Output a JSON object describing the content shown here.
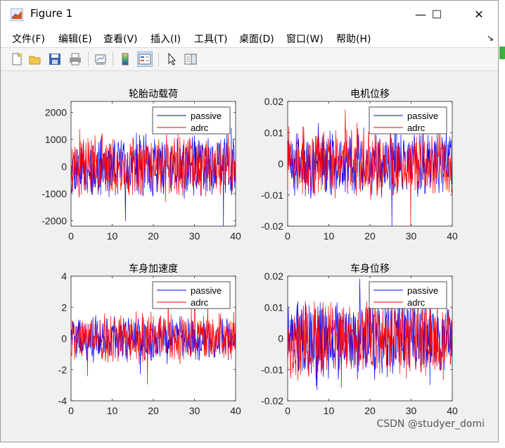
{
  "window": {
    "title": "Figure 1",
    "controls": {
      "minimize": "—",
      "maximize": "☐",
      "close": "✕"
    }
  },
  "menubar": {
    "items": [
      "文件(F)",
      "编辑(E)",
      "查看(V)",
      "插入(I)",
      "工具(T)",
      "桌面(D)",
      "窗口(W)",
      "帮助(H)"
    ],
    "overflow_icon": "corner-arrow-icon"
  },
  "toolbar": {
    "buttons": [
      {
        "name": "new-figure-icon"
      },
      {
        "name": "open-file-icon"
      },
      {
        "name": "save-icon"
      },
      {
        "name": "print-icon"
      },
      {
        "name": "link-plot-icon"
      },
      {
        "name": "colorbar-icon"
      },
      {
        "name": "legend-icon"
      },
      {
        "name": "edit-plot-pointer-icon"
      },
      {
        "name": "property-inspector-icon"
      }
    ]
  },
  "watermark": "CSDN @studyer_domi",
  "colors": {
    "passive": "#0000ff",
    "adrc": "#ff0000",
    "axes_bg": "#ffffff",
    "figure_bg": "#f0f0f0"
  },
  "chart_data": [
    {
      "type": "line",
      "title": "轮胎动载荷",
      "xlim": [
        0,
        40
      ],
      "ylim": [
        -2200,
        2400
      ],
      "xticks": [
        "0",
        "10",
        "20",
        "30",
        "40"
      ],
      "yticks": [
        "-2000",
        "-1000",
        "0",
        "1000",
        "2000"
      ],
      "legend": {
        "position": "top-right",
        "entries": [
          "passive",
          "adrc"
        ]
      },
      "series": [
        {
          "name": "passive",
          "amplitude": 1300,
          "seed": 11
        },
        {
          "name": "adrc",
          "amplitude": 1250,
          "seed": 23
        }
      ]
    },
    {
      "type": "line",
      "title": "电机位移",
      "xlim": [
        0,
        40
      ],
      "ylim": [
        -0.02,
        0.02
      ],
      "xticks": [
        "0",
        "10",
        "20",
        "30",
        "40"
      ],
      "yticks": [
        "-0.02",
        "-0.01",
        "0",
        "0.01",
        "0.02"
      ],
      "legend": {
        "position": "top-right",
        "entries": [
          "passive",
          "adrc"
        ]
      },
      "series": [
        {
          "name": "passive",
          "amplitude": 0.012,
          "seed": 5
        },
        {
          "name": "adrc",
          "amplitude": 0.0125,
          "seed": 7
        }
      ]
    },
    {
      "type": "line",
      "title": "车身加速度",
      "xlim": [
        0,
        40
      ],
      "ylim": [
        -4,
        4
      ],
      "xticks": [
        "0",
        "10",
        "20",
        "30",
        "40"
      ],
      "yticks": [
        "-4",
        "-2",
        "0",
        "2",
        "4"
      ],
      "legend": {
        "position": "top-right",
        "entries": [
          "passive",
          "adrc"
        ]
      },
      "series": [
        {
          "name": "passive",
          "amplitude": 1.6,
          "seed": 31
        },
        {
          "name": "adrc",
          "amplitude": 1.8,
          "seed": 41
        }
      ]
    },
    {
      "type": "line",
      "title": "车身位移",
      "xlim": [
        0,
        40
      ],
      "ylim": [
        -0.02,
        0.02
      ],
      "xticks": [
        "0",
        "10",
        "20",
        "30",
        "40"
      ],
      "yticks": [
        "-0.02",
        "-0.01",
        "0",
        "0.01",
        "0.02"
      ],
      "legend": {
        "position": "top-right",
        "entries": [
          "passive",
          "adrc"
        ]
      },
      "series": [
        {
          "name": "passive",
          "amplitude": 0.014,
          "seed": 13
        },
        {
          "name": "adrc",
          "amplitude": 0.0145,
          "seed": 17
        }
      ]
    }
  ]
}
